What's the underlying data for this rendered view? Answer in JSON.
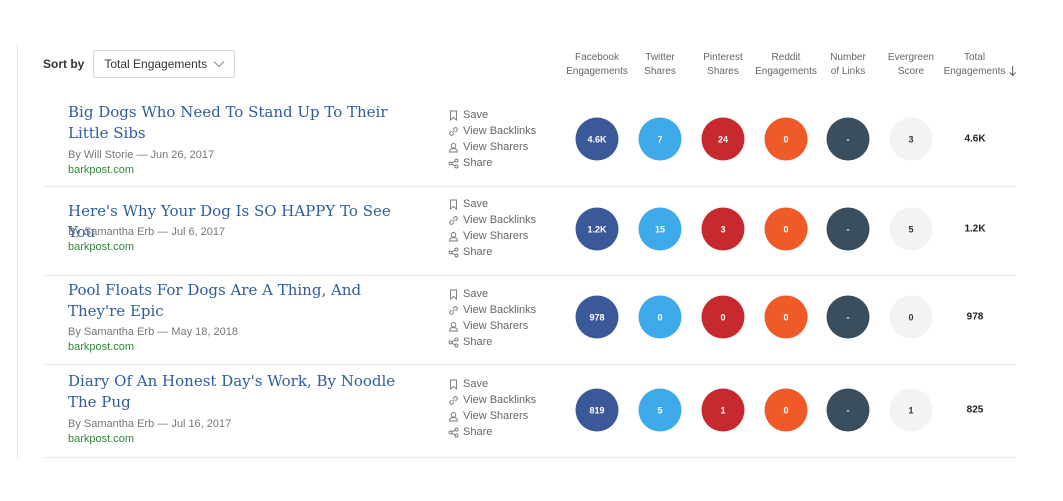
{
  "sort": {
    "label": "Sort by",
    "selected": "Total Engagements"
  },
  "columns": {
    "facebook": [
      "Facebook",
      "Engagements"
    ],
    "twitter": [
      "Twitter",
      "Shares"
    ],
    "pinterest": [
      "Pinterest",
      "Shares"
    ],
    "reddit": [
      "Reddit",
      "Engagements"
    ],
    "links": [
      "Number",
      "of Links"
    ],
    "evergreen": [
      "Evergreen",
      "Score"
    ],
    "total": [
      "Total",
      "Engagements"
    ]
  },
  "actions": {
    "save": "Save",
    "backlinks": "View Backlinks",
    "sharers": "View Sharers",
    "share": "Share"
  },
  "rows": [
    {
      "title": "Big Dogs Who Need To Stand Up To Their Little Sibs",
      "byline": "By Will Storie — Jun 26, 2017",
      "domain": "barkpost.com",
      "facebook": "4.6K",
      "twitter": "7",
      "pinterest": "24",
      "reddit": "0",
      "links": "-",
      "evergreen": "3",
      "total": "4.6K"
    },
    {
      "title": "Here's Why Your Dog Is SO HAPPY To See You",
      "byline": "By Samantha Erb — Jul 6, 2017",
      "domain": "barkpost.com",
      "facebook": "1.2K",
      "twitter": "15",
      "pinterest": "3",
      "reddit": "0",
      "links": "-",
      "evergreen": "5",
      "total": "1.2K"
    },
    {
      "title": "Pool Floats For Dogs Are A Thing, And They're Epic",
      "byline": "By Samantha Erb — May 18, 2018",
      "domain": "barkpost.com",
      "facebook": "978",
      "twitter": "0",
      "pinterest": "0",
      "reddit": "0",
      "links": "-",
      "evergreen": "0",
      "total": "978"
    },
    {
      "title": "Diary Of An Honest Day's Work, By Noodle The Pug",
      "byline": "By Samantha Erb — Jul 16, 2017",
      "domain": "barkpost.com",
      "facebook": "819",
      "twitter": "5",
      "pinterest": "1",
      "reddit": "0",
      "links": "-",
      "evergreen": "1",
      "total": "825"
    }
  ]
}
